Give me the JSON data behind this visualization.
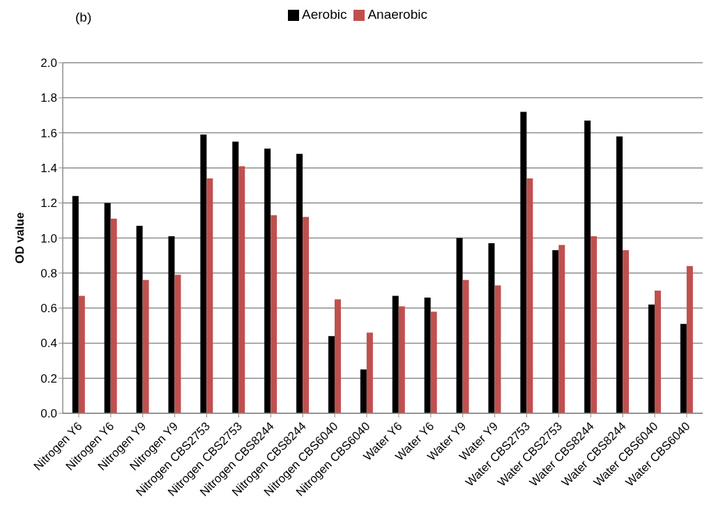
{
  "chart_data": {
    "type": "bar",
    "annotations": [
      "(b)"
    ],
    "ylabel": "OD value",
    "categories": [
      "Nitrogen Y6",
      "Nitrogen Y6",
      "Nitrogen Y9",
      "Nitrogen Y9",
      "Nitrogen CBS2753",
      "Nitrogen CBS2753",
      "Nitrogen CBS8244",
      "Nitrogen CBS8244",
      "Nitrogen CBS6040",
      "Nitrogen CBS6040",
      "Water Y6",
      "Water Y6",
      "Water Y9",
      "Water Y9",
      "Water CBS2753",
      "Water CBS2753",
      "Water CBS8244",
      "Water CBS8244",
      "Water CBS6040",
      "Water CBS6040"
    ],
    "series": [
      {
        "name": "Aerobic",
        "color": "#000000",
        "values": [
          1.24,
          1.2,
          1.07,
          1.01,
          1.59,
          1.55,
          1.51,
          1.48,
          0.44,
          0.25,
          0.67,
          0.66,
          1.0,
          0.97,
          1.72,
          0.93,
          1.67,
          1.58,
          0.62,
          0.51
        ]
      },
      {
        "name": "Anaerobic",
        "color": "#c0504d",
        "values": [
          0.67,
          1.11,
          0.76,
          0.79,
          1.34,
          1.41,
          1.13,
          1.12,
          0.65,
          0.46,
          0.61,
          0.58,
          0.76,
          0.73,
          1.34,
          0.96,
          1.01,
          0.93,
          0.7,
          0.84
        ]
      }
    ],
    "ylim": [
      0,
      2
    ],
    "yticks": [
      {
        "value": 0,
        "label": "0.0"
      },
      {
        "value": 0.2,
        "label": "0.2"
      },
      {
        "value": 0.4,
        "label": "0.4"
      },
      {
        "value": 0.6,
        "label": "0.6"
      },
      {
        "value": 0.8,
        "label": "0.8"
      },
      {
        "value": 1,
        "label": "1.0"
      },
      {
        "value": 1.2,
        "label": "1.2"
      },
      {
        "value": 1.4,
        "label": "1.4"
      },
      {
        "value": 1.6,
        "label": "1.6"
      },
      {
        "value": 1.8,
        "label": "1.8"
      },
      {
        "value": 2,
        "label": "2.0"
      }
    ],
    "grid": "y",
    "legend": "top"
  }
}
